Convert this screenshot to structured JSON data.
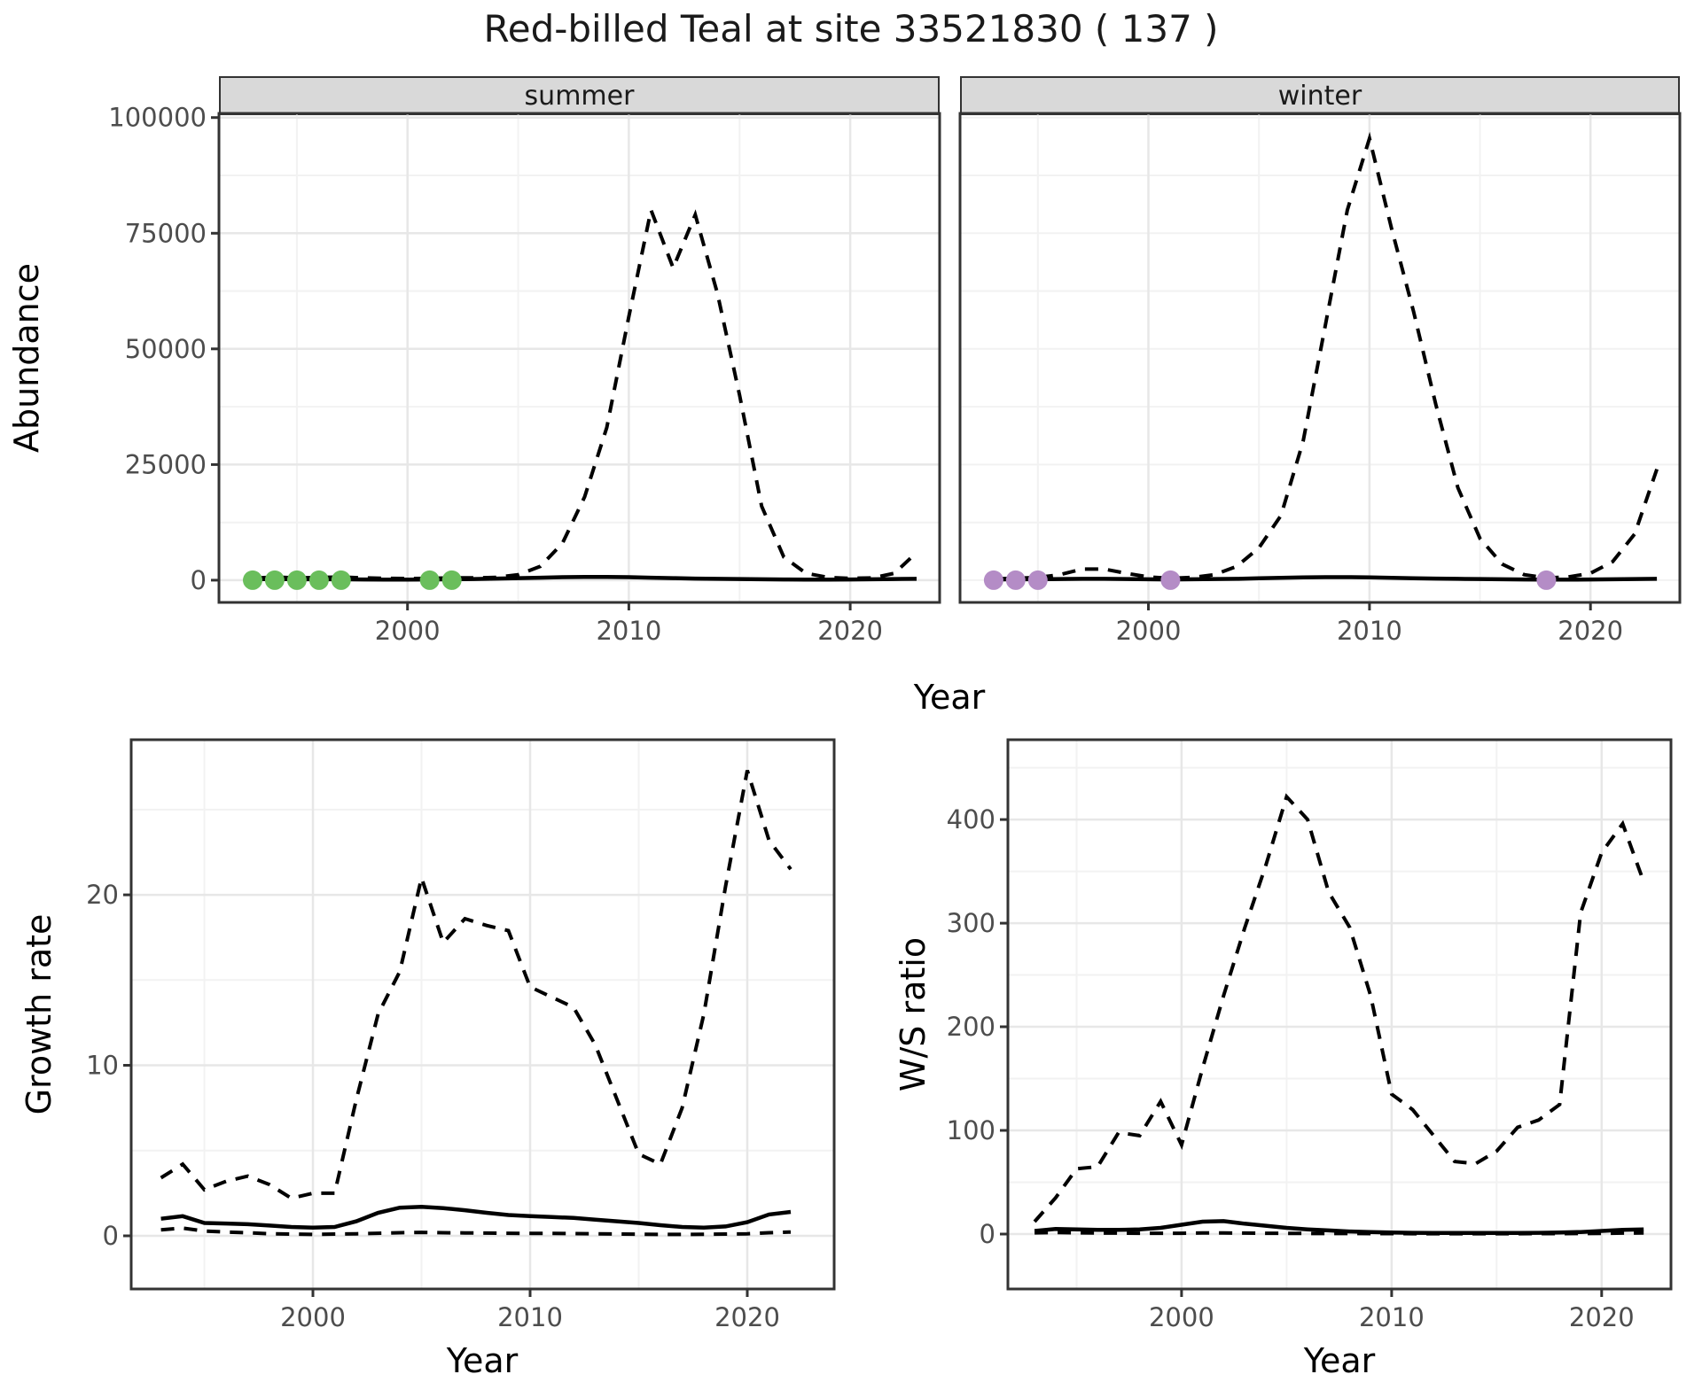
{
  "title": "Red-billed Teal at site 33521830 ( 137 )",
  "facets": {
    "summer": "summer",
    "winter": "winter"
  },
  "axis_titles": {
    "x": "Year",
    "abundance": "Abundance",
    "growth": "Growth rate",
    "ws": "W/S ratio"
  },
  "colors": {
    "summer_dot": "#6abe5c",
    "winter_dot": "#b48cc6",
    "strip_bg": "#d9d9d9",
    "panel_border": "#333333",
    "grid_major": "#e7e7e7",
    "grid_minor": "#f2f2f2",
    "line": "#000000",
    "tick_label": "#4d4d4d"
  },
  "chart_data": [
    {
      "panel": "summer",
      "type": "line",
      "facet_label": "summer",
      "xlabel": "Year",
      "ylabel": "Abundance",
      "xlim": [
        1991.48,
        2024.04
      ],
      "ylim": [
        -4800,
        100900
      ],
      "x_ticks": [
        2000,
        2010,
        2020
      ],
      "x_minor": [
        1995,
        2005,
        2015
      ],
      "y_ticks": [
        {
          "value": 0,
          "label": "0"
        },
        {
          "value": 25000,
          "label": "25000"
        },
        {
          "value": 50000,
          "label": "50000"
        },
        {
          "value": 75000,
          "label": "75000"
        },
        {
          "value": 100000,
          "label": "100000"
        }
      ],
      "y_minor": [
        12500,
        37500,
        62500,
        87500
      ],
      "series": [
        {
          "name": "upper-ci",
          "style": "dashed",
          "x": [
            1993,
            1994,
            1995,
            1996,
            1997,
            1998,
            1999,
            2000,
            2001,
            2002,
            2003,
            2004,
            2005,
            2006,
            2007,
            2008,
            2009,
            2010,
            2011,
            2012,
            2013,
            2014,
            2015,
            2016,
            2017,
            2018,
            2019,
            2020,
            2021,
            2022,
            2023
          ],
          "y": [
            400,
            700,
            500,
            600,
            700,
            500,
            400,
            350,
            400,
            500,
            500,
            600,
            1200,
            3000,
            8000,
            18000,
            33000,
            57000,
            80000,
            67500,
            79000,
            62000,
            40000,
            16000,
            5000,
            1500,
            600,
            400,
            500,
            1500,
            6000
          ]
        },
        {
          "name": "estimate",
          "style": "solid",
          "x": [
            1993,
            1994,
            1995,
            1996,
            1997,
            1998,
            1999,
            2000,
            2001,
            2002,
            2003,
            2004,
            2005,
            2006,
            2007,
            2008,
            2009,
            2010,
            2011,
            2012,
            2013,
            2014,
            2015,
            2016,
            2017,
            2018,
            2019,
            2020,
            2021,
            2022,
            2023
          ],
          "y": [
            200,
            250,
            200,
            200,
            200,
            150,
            120,
            120,
            150,
            200,
            250,
            350,
            450,
            550,
            650,
            700,
            700,
            650,
            550,
            450,
            350,
            300,
            250,
            200,
            150,
            120,
            120,
            150,
            200,
            250,
            300
          ]
        }
      ],
      "points": {
        "name": "observed-zero-count",
        "color": "#6abe5c",
        "value": 0,
        "years": [
          1993,
          1994,
          1995,
          1996,
          1997,
          2001,
          2002
        ]
      }
    },
    {
      "panel": "winter",
      "type": "line",
      "facet_label": "winter",
      "xlabel": "Year",
      "ylabel": "Abundance",
      "xlim": [
        1991.48,
        2024.04
      ],
      "ylim": [
        -4800,
        100900
      ],
      "x_ticks": [
        2000,
        2010,
        2020
      ],
      "x_minor": [
        1995,
        2005,
        2015
      ],
      "y_ticks": [],
      "y_minor": [
        0,
        12500,
        25000,
        37500,
        50000,
        62500,
        75000,
        87500,
        100000
      ],
      "series": [
        {
          "name": "upper-ci",
          "style": "dashed",
          "x": [
            1993,
            1994,
            1995,
            1996,
            1997,
            1998,
            1999,
            2000,
            2001,
            2002,
            2003,
            2004,
            2005,
            2006,
            2007,
            2008,
            2009,
            2010,
            2011,
            2012,
            2013,
            2014,
            2015,
            2016,
            2017,
            2018,
            2019,
            2020,
            2021,
            2022,
            2023
          ],
          "y": [
            300,
            400,
            600,
            1200,
            2400,
            2400,
            1500,
            700,
            400,
            600,
            1200,
            3000,
            7000,
            14000,
            30000,
            55000,
            80000,
            95500,
            76000,
            58000,
            38000,
            20000,
            9000,
            3500,
            1200,
            500,
            700,
            1500,
            4000,
            10000,
            24000
          ]
        },
        {
          "name": "estimate",
          "style": "solid",
          "x": [
            1993,
            1994,
            1995,
            1996,
            1997,
            1998,
            1999,
            2000,
            2001,
            2002,
            2003,
            2004,
            2005,
            2006,
            2007,
            2008,
            2009,
            2010,
            2011,
            2012,
            2013,
            2014,
            2015,
            2016,
            2017,
            2018,
            2019,
            2020,
            2021,
            2022,
            2023
          ],
          "y": [
            150,
            200,
            200,
            250,
            300,
            300,
            250,
            200,
            150,
            200,
            250,
            300,
            400,
            500,
            600,
            650,
            650,
            600,
            500,
            400,
            350,
            300,
            250,
            200,
            150,
            120,
            120,
            150,
            200,
            250,
            300
          ]
        }
      ],
      "points": {
        "name": "observed-zero-count",
        "color": "#b48cc6",
        "value": 0,
        "years": [
          1993,
          1994,
          1995,
          2001,
          2018
        ]
      }
    },
    {
      "panel": "growth",
      "type": "line",
      "facet_label": "",
      "xlabel": "Year",
      "ylabel": "Growth rate",
      "xlim": [
        1991.63,
        2024.0
      ],
      "ylim": [
        -3.12,
        29.1
      ],
      "x_ticks": [
        2000,
        2010,
        2020
      ],
      "x_minor": [
        1995,
        2005,
        2015
      ],
      "y_ticks": [
        {
          "value": 0,
          "label": "0"
        },
        {
          "value": 10,
          "label": "10"
        },
        {
          "value": 20,
          "label": "20"
        }
      ],
      "y_minor": [
        5,
        15,
        25
      ],
      "series": [
        {
          "name": "upper-ci",
          "style": "dashed",
          "x": [
            1993,
            1994,
            1995,
            1996,
            1997,
            1998,
            1999,
            2000,
            2001,
            2002,
            2003,
            2004,
            2005,
            2006,
            2007,
            2008,
            2009,
            2010,
            2011,
            2012,
            2013,
            2014,
            2015,
            2016,
            2017,
            2018,
            2019,
            2020,
            2021,
            2022
          ],
          "y": [
            3.4,
            4.2,
            2.7,
            3.2,
            3.5,
            3.0,
            2.2,
            2.5,
            2.5,
            8.0,
            13.0,
            15.5,
            21.0,
            17.2,
            18.6,
            18.2,
            17.9,
            14.6,
            14.0,
            13.4,
            11.2,
            8.0,
            4.8,
            4.2,
            7.5,
            13.0,
            20.5,
            27.3,
            23.2,
            21.5
          ]
        },
        {
          "name": "estimate",
          "style": "solid",
          "x": [
            1993,
            1994,
            1995,
            1996,
            1997,
            1998,
            1999,
            2000,
            2001,
            2002,
            2003,
            2004,
            2005,
            2006,
            2007,
            2008,
            2009,
            2010,
            2011,
            2012,
            2013,
            2014,
            2015,
            2016,
            2017,
            2018,
            2019,
            2020,
            2021,
            2022
          ],
          "y": [
            1.0,
            1.15,
            0.75,
            0.72,
            0.68,
            0.6,
            0.52,
            0.48,
            0.52,
            0.85,
            1.35,
            1.65,
            1.7,
            1.62,
            1.5,
            1.35,
            1.22,
            1.15,
            1.1,
            1.05,
            0.95,
            0.85,
            0.75,
            0.62,
            0.52,
            0.48,
            0.55,
            0.8,
            1.25,
            1.4
          ]
        },
        {
          "name": "lower-ci",
          "style": "dashed",
          "x": [
            1993,
            1994,
            1995,
            1996,
            1997,
            1998,
            1999,
            2000,
            2001,
            2002,
            2003,
            2004,
            2005,
            2006,
            2007,
            2008,
            2009,
            2010,
            2011,
            2012,
            2013,
            2014,
            2015,
            2016,
            2017,
            2018,
            2019,
            2020,
            2021,
            2022
          ],
          "y": [
            0.35,
            0.45,
            0.28,
            0.22,
            0.18,
            0.12,
            0.1,
            0.08,
            0.1,
            0.12,
            0.15,
            0.18,
            0.2,
            0.18,
            0.17,
            0.16,
            0.15,
            0.14,
            0.14,
            0.13,
            0.12,
            0.1,
            0.09,
            0.08,
            0.08,
            0.09,
            0.1,
            0.12,
            0.18,
            0.22
          ]
        }
      ],
      "points": null
    },
    {
      "panel": "ws",
      "type": "line",
      "facet_label": "",
      "xlabel": "Year",
      "ylabel": "W/S ratio",
      "xlim": [
        1991.73,
        2023.3
      ],
      "ylim": [
        -53,
        477
      ],
      "x_ticks": [
        2000,
        2010,
        2020
      ],
      "x_minor": [
        1995,
        2005,
        2015
      ],
      "y_ticks": [
        {
          "value": 0,
          "label": "0"
        },
        {
          "value": 100,
          "label": "100"
        },
        {
          "value": 200,
          "label": "200"
        },
        {
          "value": 300,
          "label": "300"
        },
        {
          "value": 400,
          "label": "400"
        }
      ],
      "y_minor": [
        50,
        150,
        250,
        350,
        450
      ],
      "series": [
        {
          "name": "upper-ci",
          "style": "dashed",
          "x": [
            1993,
            1994,
            1995,
            1996,
            1997,
            1998,
            1999,
            2000,
            2001,
            2002,
            2003,
            2004,
            2005,
            2006,
            2007,
            2008,
            2009,
            2010,
            2011,
            2012,
            2013,
            2014,
            2015,
            2016,
            2017,
            2018,
            2019,
            2020,
            2021,
            2022
          ],
          "y": [
            12,
            35,
            63,
            65,
            98,
            95,
            128,
            86,
            160,
            230,
            295,
            355,
            422,
            400,
            330,
            296,
            230,
            135,
            120,
            95,
            70,
            68,
            80,
            103,
            110,
            125,
            310,
            368,
            396,
            340
          ]
        },
        {
          "name": "estimate",
          "style": "solid",
          "x": [
            1993,
            1994,
            1995,
            1996,
            1997,
            1998,
            1999,
            2000,
            2001,
            2002,
            2003,
            2004,
            2005,
            2006,
            2007,
            2008,
            2009,
            2010,
            2011,
            2012,
            2013,
            2014,
            2015,
            2016,
            2017,
            2018,
            2019,
            2020,
            2021,
            2022
          ],
          "y": [
            3,
            5,
            4.5,
            4,
            4,
            4.5,
            6,
            9,
            12,
            12.5,
            10,
            8,
            6,
            4.5,
            3.5,
            2.5,
            2,
            1.5,
            1.2,
            1,
            1,
            1,
            1,
            1,
            1.2,
            1.5,
            2,
            3,
            4,
            4.5
          ]
        },
        {
          "name": "lower-ci",
          "style": "dashed",
          "x": [
            1993,
            1994,
            1995,
            1996,
            1997,
            1998,
            1999,
            2000,
            2001,
            2002,
            2003,
            2004,
            2005,
            2006,
            2007,
            2008,
            2009,
            2010,
            2011,
            2012,
            2013,
            2014,
            2015,
            2016,
            2017,
            2018,
            2019,
            2020,
            2021,
            2022
          ],
          "y": [
            1.2,
            1.5,
            1.2,
            1,
            0.9,
            0.8,
            0.8,
            0.8,
            1,
            1,
            0.9,
            0.8,
            0.7,
            0.6,
            0.5,
            0.5,
            0.4,
            0.4,
            0.3,
            0.3,
            0.3,
            0.3,
            0.3,
            0.3,
            0.4,
            0.4,
            0.5,
            0.7,
            0.9,
            1
          ]
        }
      ],
      "points": null
    }
  ]
}
